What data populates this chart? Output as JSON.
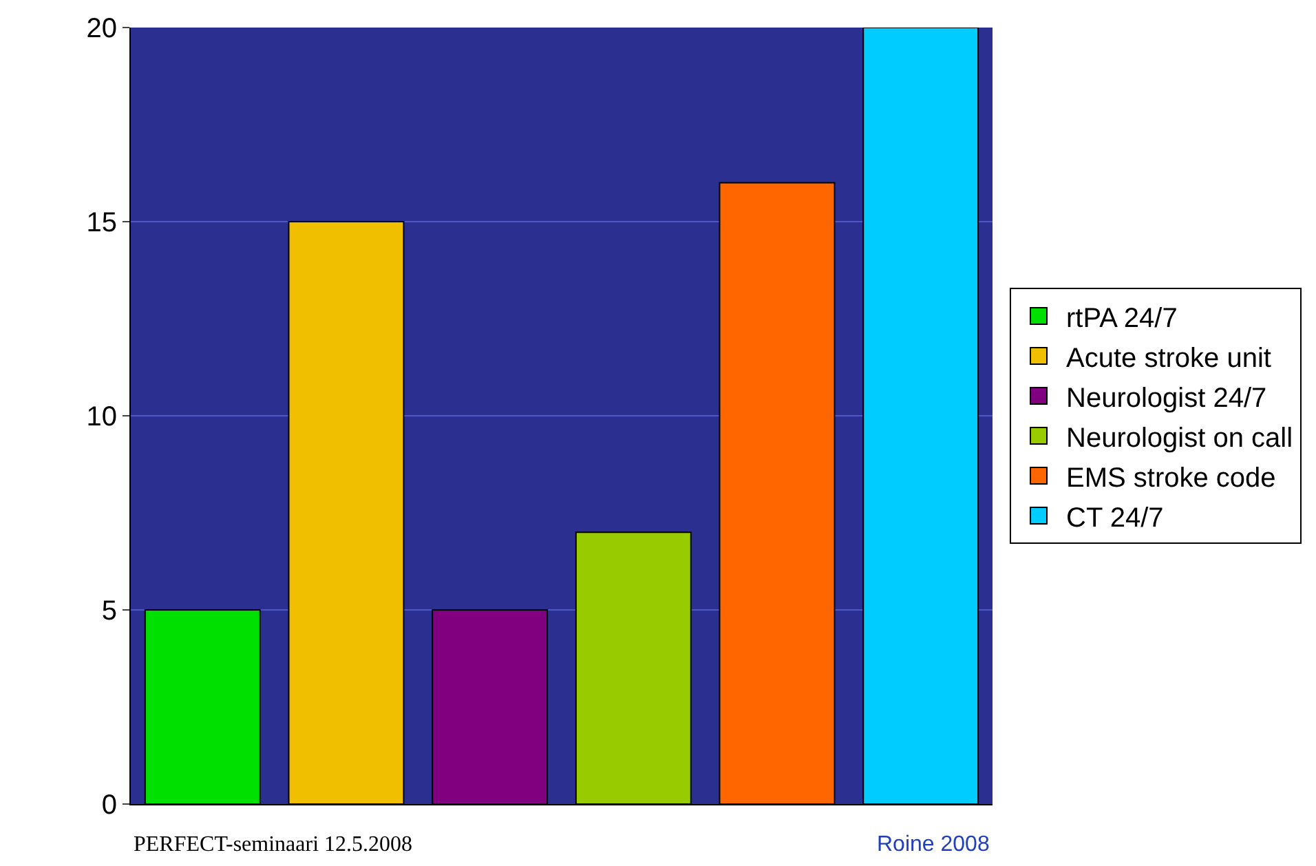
{
  "chart_data": {
    "type": "bar",
    "categories": [
      null,
      null,
      null,
      null,
      null,
      null
    ],
    "series": [
      {
        "name": "rtPA 24/7",
        "color": "#00e000",
        "values": [
          5,
          null,
          null,
          null,
          null,
          null
        ]
      },
      {
        "name": "Acute stroke unit",
        "color": "#f0c000",
        "values": [
          null,
          15,
          null,
          null,
          null,
          null
        ]
      },
      {
        "name": "Neurologist 24/7",
        "color": "#800080",
        "values": [
          null,
          null,
          5,
          null,
          null,
          null
        ]
      },
      {
        "name": "Neurologist on call",
        "color": "#99cc00",
        "values": [
          null,
          null,
          null,
          7,
          null,
          null
        ]
      },
      {
        "name": "EMS stroke code",
        "color": "#ff6600",
        "values": [
          null,
          null,
          null,
          null,
          16,
          null
        ]
      },
      {
        "name": "CT 24/7",
        "color": "#00ccff",
        "values": [
          null,
          null,
          null,
          null,
          null,
          20
        ]
      }
    ],
    "ylim": [
      0,
      20
    ],
    "yticks": [
      0,
      5,
      10,
      15,
      20
    ],
    "grid": "y",
    "legend": "right",
    "tick_labels": "y",
    "annotations": [
      "PERFECT-seminaari 12.5.2008",
      "Roine 2008"
    ]
  }
}
